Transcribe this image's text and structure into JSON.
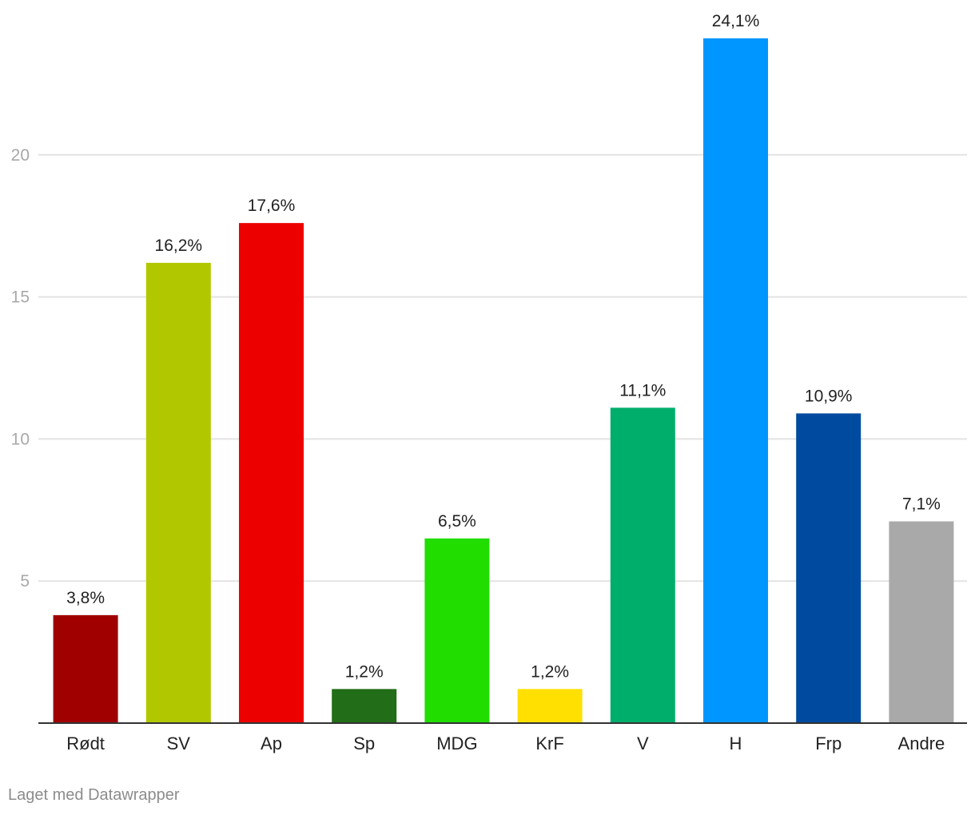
{
  "chart_data": {
    "type": "bar",
    "categories": [
      "Rødt",
      "SV",
      "Ap",
      "Sp",
      "MDG",
      "KrF",
      "V",
      "H",
      "Frp",
      "Andre"
    ],
    "values": [
      3.8,
      16.2,
      17.6,
      1.2,
      6.5,
      1.2,
      11.1,
      24.1,
      10.9,
      7.1
    ],
    "value_labels": [
      "3,8%",
      "16,2%",
      "17,6%",
      "1,2%",
      "6,5%",
      "1,2%",
      "11,1%",
      "24,1%",
      "10,9%",
      "7,1%"
    ],
    "colors": [
      "#a00000",
      "#b1c800",
      "#ec0000",
      "#226d17",
      "#22dd00",
      "#ffe000",
      "#00ae6c",
      "#0096ff",
      "#004b9f",
      "#a9a9a9"
    ],
    "yticks": [
      5,
      10,
      15,
      20
    ],
    "ylim": [
      0,
      24.1
    ],
    "grid": true,
    "title": "",
    "xlabel": "",
    "ylabel": ""
  },
  "footer": {
    "credit": "Laget med Datawrapper"
  }
}
